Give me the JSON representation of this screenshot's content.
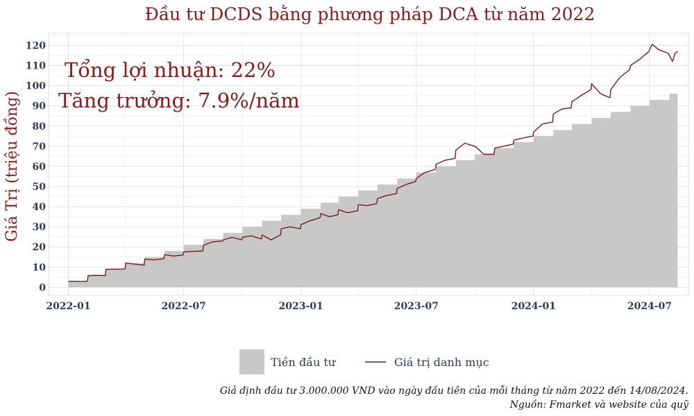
{
  "chart_data": {
    "type": "area",
    "title": "Đầu tư DCDS bằng phương pháp DCA từ năm 2022",
    "ylabel": "Giá Trị (triệu đồng)",
    "xlabel": "",
    "x_range": [
      "2021-12-01",
      "2024-08-31"
    ],
    "ylim": [
      -4,
      126
    ],
    "x_ticks": [
      "2022-01",
      "2022-07",
      "2023-01",
      "2023-07",
      "2024-01",
      "2024-07"
    ],
    "y_ticks": [
      0,
      10,
      20,
      30,
      40,
      50,
      60,
      70,
      80,
      90,
      100,
      110,
      120
    ],
    "grid": true,
    "annotations": [
      "Tổng lợi nhuận: 22%",
      "Tăng trưởng: 7.9%/năm"
    ],
    "legend_position": "bottom",
    "series": [
      {
        "name": "Tiền đầu tư",
        "kind": "step-area",
        "color": "#c8c8c8",
        "points": [
          [
            "2022-01-01",
            3
          ],
          [
            "2022-02-01",
            6
          ],
          [
            "2022-03-01",
            9
          ],
          [
            "2022-04-01",
            12
          ],
          [
            "2022-05-01",
            15
          ],
          [
            "2022-06-01",
            18
          ],
          [
            "2022-07-01",
            21
          ],
          [
            "2022-08-01",
            24
          ],
          [
            "2022-09-01",
            27
          ],
          [
            "2022-10-01",
            30
          ],
          [
            "2022-11-01",
            33
          ],
          [
            "2022-12-01",
            36
          ],
          [
            "2023-01-01",
            39
          ],
          [
            "2023-02-01",
            42
          ],
          [
            "2023-03-01",
            45
          ],
          [
            "2023-04-01",
            48
          ],
          [
            "2023-05-01",
            51
          ],
          [
            "2023-06-01",
            54
          ],
          [
            "2023-07-01",
            57
          ],
          [
            "2023-08-01",
            60
          ],
          [
            "2023-09-01",
            63
          ],
          [
            "2023-10-01",
            66
          ],
          [
            "2023-11-01",
            69
          ],
          [
            "2023-12-01",
            72
          ],
          [
            "2024-01-01",
            75
          ],
          [
            "2024-02-01",
            78
          ],
          [
            "2024-03-01",
            81
          ],
          [
            "2024-04-01",
            84
          ],
          [
            "2024-05-01",
            87
          ],
          [
            "2024-06-01",
            90
          ],
          [
            "2024-07-01",
            93
          ],
          [
            "2024-08-01",
            96
          ],
          [
            "2024-08-14",
            96
          ]
        ]
      },
      {
        "name": "Giá trị danh mục",
        "kind": "line",
        "color": "#7a1a1a",
        "points": [
          [
            "2022-01-01",
            3
          ],
          [
            "2022-01-20",
            2.9
          ],
          [
            "2022-01-31",
            3
          ],
          [
            "2022-02-01",
            5.8
          ],
          [
            "2022-02-15",
            5.9
          ],
          [
            "2022-02-28",
            5.8
          ],
          [
            "2022-03-01",
            8.9
          ],
          [
            "2022-03-20",
            9
          ],
          [
            "2022-03-31",
            9.1
          ],
          [
            "2022-04-01",
            12.1
          ],
          [
            "2022-04-15",
            11.5
          ],
          [
            "2022-04-30",
            11
          ],
          [
            "2022-05-01",
            14
          ],
          [
            "2022-05-15",
            13.6
          ],
          [
            "2022-05-31",
            14.2
          ],
          [
            "2022-06-01",
            16.2
          ],
          [
            "2022-06-15",
            15.5
          ],
          [
            "2022-06-30",
            16
          ],
          [
            "2022-07-01",
            17.5
          ],
          [
            "2022-07-15",
            17.8
          ],
          [
            "2022-07-31",
            18
          ],
          [
            "2022-08-01",
            20.8
          ],
          [
            "2022-08-15",
            22.5
          ],
          [
            "2022-08-31",
            23
          ],
          [
            "2022-09-01",
            23.5
          ],
          [
            "2022-09-15",
            24.8
          ],
          [
            "2022-09-30",
            23.5
          ],
          [
            "2022-10-01",
            24.8
          ],
          [
            "2022-10-15",
            25.5
          ],
          [
            "2022-10-31",
            24
          ],
          [
            "2022-11-01",
            26
          ],
          [
            "2022-11-15",
            23.5
          ],
          [
            "2022-11-30",
            26
          ],
          [
            "2022-12-01",
            29
          ],
          [
            "2022-12-15",
            30
          ],
          [
            "2022-12-31",
            29
          ],
          [
            "2023-01-01",
            31
          ],
          [
            "2023-01-15",
            33
          ],
          [
            "2023-01-31",
            34.5
          ],
          [
            "2023-02-01",
            36.5
          ],
          [
            "2023-02-15",
            35
          ],
          [
            "2023-02-28",
            36
          ],
          [
            "2023-03-01",
            38.5
          ],
          [
            "2023-03-15",
            37
          ],
          [
            "2023-03-31",
            38
          ],
          [
            "2023-04-01",
            41
          ],
          [
            "2023-04-15",
            40.5
          ],
          [
            "2023-04-30",
            41.5
          ],
          [
            "2023-05-01",
            44
          ],
          [
            "2023-05-15",
            45.5
          ],
          [
            "2023-05-31",
            46.5
          ],
          [
            "2023-06-01",
            49
          ],
          [
            "2023-06-15",
            51
          ],
          [
            "2023-06-30",
            52.5
          ],
          [
            "2023-07-01",
            54
          ],
          [
            "2023-07-15",
            57
          ],
          [
            "2023-07-31",
            58.5
          ],
          [
            "2023-08-01",
            61
          ],
          [
            "2023-08-15",
            63
          ],
          [
            "2023-08-31",
            64
          ],
          [
            "2023-09-01",
            68
          ],
          [
            "2023-09-15",
            71.5
          ],
          [
            "2023-09-30",
            70
          ],
          [
            "2023-10-01",
            70
          ],
          [
            "2023-10-15",
            66
          ],
          [
            "2023-10-31",
            66
          ],
          [
            "2023-11-01",
            69
          ],
          [
            "2023-11-15",
            70
          ],
          [
            "2023-11-30",
            71
          ],
          [
            "2023-12-01",
            73
          ],
          [
            "2023-12-15",
            74
          ],
          [
            "2023-12-31",
            75
          ],
          [
            "2024-01-01",
            77
          ],
          [
            "2024-01-15",
            81
          ],
          [
            "2024-01-31",
            82
          ],
          [
            "2024-02-01",
            86
          ],
          [
            "2024-02-15",
            88.5
          ],
          [
            "2024-02-29",
            89
          ],
          [
            "2024-03-01",
            92
          ],
          [
            "2024-03-15",
            95
          ],
          [
            "2024-03-31",
            98
          ],
          [
            "2024-04-01",
            101
          ],
          [
            "2024-04-15",
            96
          ],
          [
            "2024-04-30",
            94
          ],
          [
            "2024-05-01",
            98
          ],
          [
            "2024-05-15",
            104
          ],
          [
            "2024-05-31",
            108
          ],
          [
            "2024-06-01",
            110
          ],
          [
            "2024-06-15",
            113
          ],
          [
            "2024-06-30",
            117
          ],
          [
            "2024-07-01",
            118
          ],
          [
            "2024-07-05",
            120.5
          ],
          [
            "2024-07-15",
            118
          ],
          [
            "2024-07-31",
            116
          ],
          [
            "2024-08-01",
            115
          ],
          [
            "2024-08-06",
            112
          ],
          [
            "2024-08-10",
            116
          ],
          [
            "2024-08-14",
            117
          ]
        ]
      }
    ]
  },
  "caption": {
    "line1": "Giả định đầu tư 3.000.000 VND vào ngày đầu tiên của mỗi tháng từ năm 2022 đến 14/08/2024.",
    "line2": "Nguồn: Fmarket và website của quỹ"
  }
}
